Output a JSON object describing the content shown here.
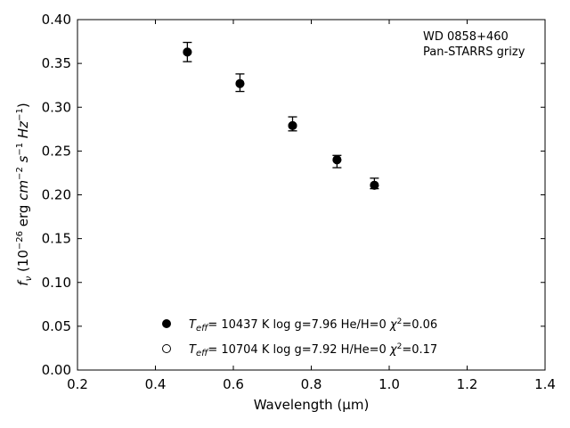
{
  "chart_data": {
    "type": "scatter",
    "xlabel": "Wavelength (μm)",
    "ylabel_parts": {
      "f": "f",
      "nu": "ν",
      "open": " (10",
      "exp1": "−26",
      "mid1": " erg ",
      "cm": "cm",
      "exp2": "−2",
      "s": " s",
      "exp3": "−1",
      "hz": " Hz",
      "exp4": "−1",
      "close": ")"
    },
    "xlim": [
      0.2,
      1.4
    ],
    "ylim": [
      0.0,
      0.4
    ],
    "x_ticks": [
      "0.2",
      "0.4",
      "0.6",
      "0.8",
      "1.0",
      "1.2",
      "1.4"
    ],
    "y_ticks": [
      "0.00",
      "0.05",
      "0.10",
      "0.15",
      "0.20",
      "0.25",
      "0.30",
      "0.35",
      "0.40"
    ],
    "annotation": [
      "WD 0858+460",
      "Pan-STARRS grizy"
    ],
    "observed": {
      "x": [
        0.482,
        0.617,
        0.752,
        0.866,
        0.962
      ],
      "y": [
        0.363,
        0.328,
        0.281,
        0.238,
        0.213
      ],
      "err": [
        0.011,
        0.01,
        0.008,
        0.007,
        0.006
      ]
    },
    "series": [
      {
        "marker": "filled",
        "values": [
          0.363,
          0.327,
          0.279,
          0.24,
          0.211
        ]
      },
      {
        "marker": "open",
        "values": [
          0.363,
          0.327,
          0.279,
          0.24,
          0.211
        ]
      }
    ],
    "legend": [
      {
        "marker": "filled",
        "t": "T",
        "eff": "eff",
        "text1": "= 10437 K  log g=7.96  He/H=0  ",
        "chi": "χ",
        "sq": "2",
        "text2": "=0.06"
      },
      {
        "marker": "open",
        "t": "T",
        "eff": "eff",
        "text1": "= 10704 K  log g=7.92  H/He=0  ",
        "chi": "χ",
        "sq": "2",
        "text2": "=0.17"
      }
    ],
    "legend_placement": "lower-center",
    "grid": false
  }
}
